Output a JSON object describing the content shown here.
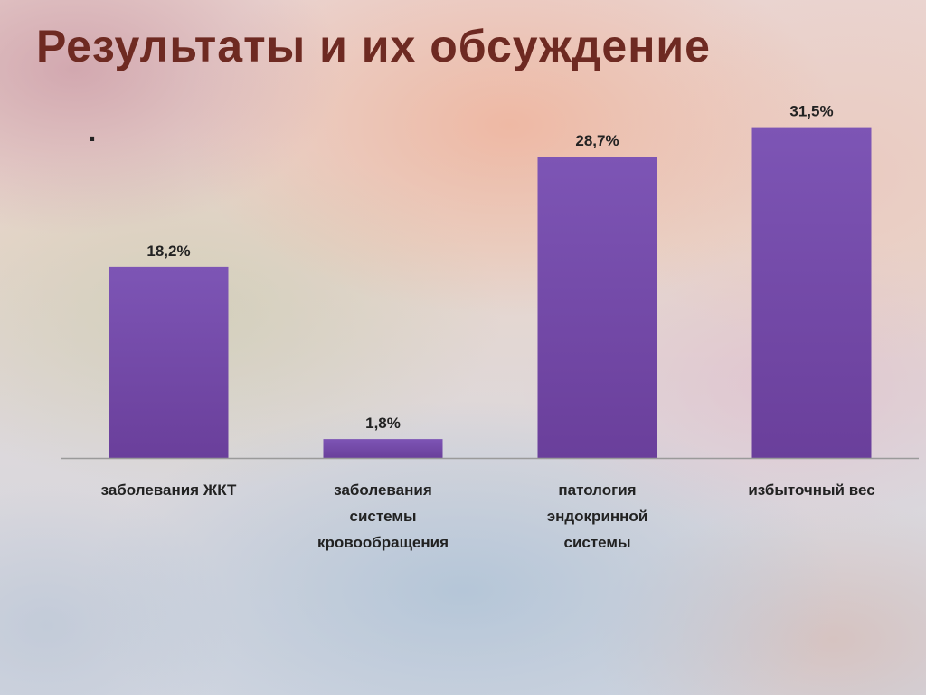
{
  "slide": {
    "title": "Результаты и их обсуждение",
    "marker": "."
  },
  "colors": {
    "bar": "#6a3f9b",
    "bar_top": "#7d55b5",
    "title": "#6e2a22",
    "axis": "#9a9a9a"
  },
  "chart_data": {
    "type": "bar",
    "categories": [
      [
        "заболевания ЖКТ"
      ],
      [
        "заболевания",
        "системы",
        "кровообращения"
      ],
      [
        "патология",
        "эндокринной",
        "системы"
      ],
      [
        "избыточный вес"
      ]
    ],
    "values": [
      18.2,
      1.8,
      28.7,
      31.5
    ],
    "value_labels": [
      "18,2%",
      "1,8%",
      "28,7%",
      "31,5%"
    ],
    "ylim": [
      0,
      35
    ],
    "grid": false,
    "legend": "none"
  }
}
